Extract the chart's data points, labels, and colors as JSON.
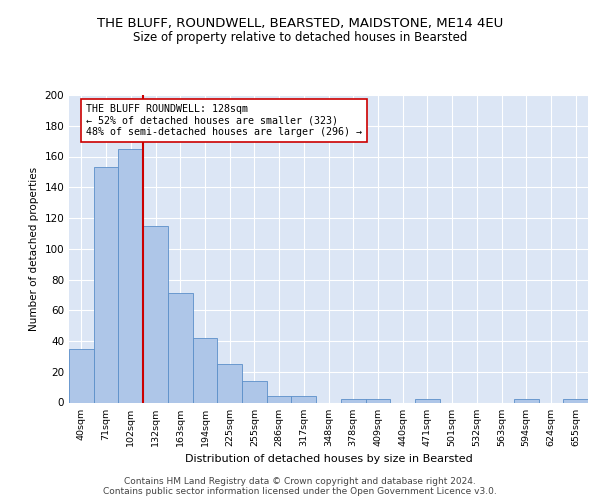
{
  "title": "THE BLUFF, ROUNDWELL, BEARSTED, MAIDSTONE, ME14 4EU",
  "subtitle": "Size of property relative to detached houses in Bearsted",
  "xlabel": "Distribution of detached houses by size in Bearsted",
  "ylabel": "Number of detached properties",
  "bar_labels": [
    "40sqm",
    "71sqm",
    "102sqm",
    "132sqm",
    "163sqm",
    "194sqm",
    "225sqm",
    "255sqm",
    "286sqm",
    "317sqm",
    "348sqm",
    "378sqm",
    "409sqm",
    "440sqm",
    "471sqm",
    "501sqm",
    "532sqm",
    "563sqm",
    "594sqm",
    "624sqm",
    "655sqm"
  ],
  "bar_values": [
    35,
    153,
    165,
    115,
    71,
    42,
    25,
    14,
    4,
    4,
    0,
    2,
    2,
    0,
    2,
    0,
    0,
    0,
    2,
    0,
    2
  ],
  "bar_color": "#aec6e8",
  "bar_edge_color": "#5b8fc9",
  "vline_x_idx": 3,
  "vline_color": "#cc0000",
  "annotation_text": "THE BLUFF ROUNDWELL: 128sqm\n← 52% of detached houses are smaller (323)\n48% of semi-detached houses are larger (296) →",
  "annotation_box_color": "#ffffff",
  "annotation_box_edge": "#cc0000",
  "ylim": [
    0,
    200
  ],
  "yticks": [
    0,
    20,
    40,
    60,
    80,
    100,
    120,
    140,
    160,
    180,
    200
  ],
  "background_color": "#dce6f5",
  "footer_line1": "Contains HM Land Registry data © Crown copyright and database right 2024.",
  "footer_line2": "Contains public sector information licensed under the Open Government Licence v3.0.",
  "title_fontsize": 9.5,
  "subtitle_fontsize": 8.5,
  "footer_fontsize": 6.5
}
